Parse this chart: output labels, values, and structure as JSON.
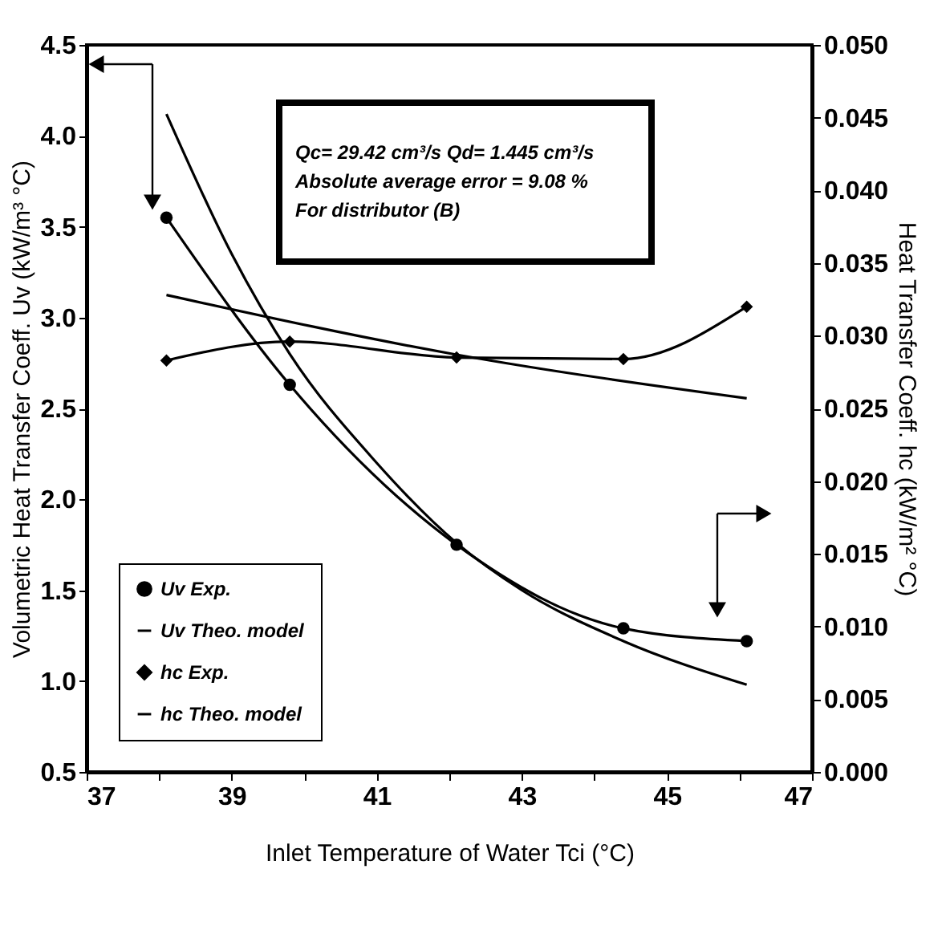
{
  "chart_data": {
    "type": "line",
    "xlabel": "Inlet Temperature of Water Tci (°C)",
    "ylabel": "Volumetric Heat Transfer Coeff. Uv (kW/m³ °C)",
    "y2label": "Heat Transfer Coeff. hc (kW/m² °C)",
    "annotations": [
      "Qc= 29.42 cm³/s   Qd= 1.445 cm³/s",
      "Absolute average error = 9.08 %",
      "For distributor (B)"
    ],
    "xlim": [
      37,
      47
    ],
    "xticks": [
      37,
      {
        "value": 38,
        "label": null
      },
      39,
      {
        "value": 40,
        "label": null
      },
      41,
      {
        "value": 42,
        "label": null
      },
      43,
      {
        "value": 44,
        "label": null
      },
      45,
      {
        "value": 46,
        "label": null
      },
      47
    ],
    "ylim": [
      0.5,
      4.5
    ],
    "yticks": [
      0.5,
      {
        "value": 1,
        "label": "1.0"
      },
      1.5,
      {
        "value": 2,
        "label": "2.0"
      },
      2.5,
      {
        "value": 3,
        "label": "3.0"
      },
      3.5,
      {
        "value": 4,
        "label": "4.0"
      },
      4.5
    ],
    "y2lim": [
      0.0,
      0.05
    ],
    "y2ticks": [
      {
        "value": 0,
        "label": "0.000"
      },
      0.005,
      {
        "value": 0.01,
        "label": "0.010"
      },
      0.015,
      {
        "value": 0.02,
        "label": "0.020"
      },
      0.025,
      {
        "value": 0.03,
        "label": "0.030"
      },
      0.035,
      {
        "value": 0.04,
        "label": "0.040"
      },
      0.045,
      {
        "value": 0.05,
        "label": "0.050"
      }
    ],
    "grid": false,
    "legend": "bottom left",
    "series": [
      {
        "name": "Uv Exp.",
        "color": "#000000",
        "marker": "circle",
        "x": [
          38.1,
          39.8,
          42.1,
          44.4,
          46.1
        ],
        "values": [
          3.55,
          2.63,
          1.75,
          1.29,
          1.22
        ]
      },
      {
        "name": "Uv Theo. model",
        "color": "#000000",
        "marker": "none",
        "x": [
          38.1,
          39.0,
          39.8,
          41.0,
          42.1,
          43.0,
          44.4,
          46.1
        ],
        "values": [
          4.12,
          3.35,
          2.8,
          2.2,
          1.76,
          1.5,
          1.22,
          0.98
        ]
      },
      {
        "name": "hc Exp.",
        "color": "#000000",
        "marker": "diamond",
        "axis": "y2",
        "x": [
          38.1,
          39.8,
          42.1,
          44.4,
          46.1
        ],
        "values": [
          0.0283,
          0.0296,
          0.0285,
          0.0284,
          0.032
        ]
      },
      {
        "name": "hc Theo. model",
        "color": "#000000",
        "marker": "none",
        "axis": "y2",
        "x": [
          38.1,
          42.1,
          46.1
        ],
        "values": [
          0.0328,
          0.0287,
          0.0257
        ]
      }
    ]
  }
}
